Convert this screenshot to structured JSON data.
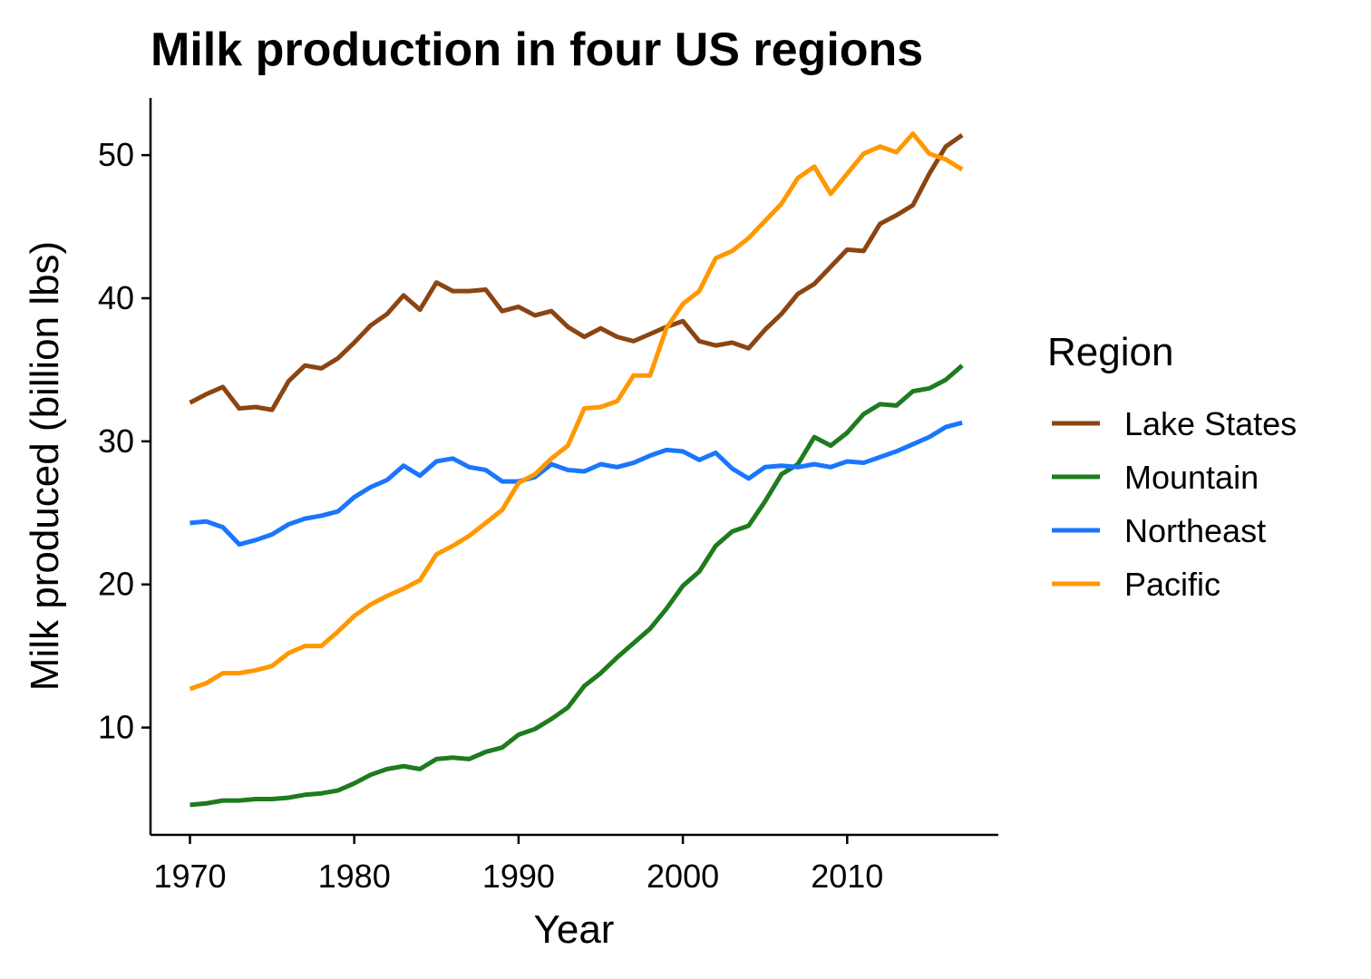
{
  "chart_data": {
    "type": "line",
    "title": "Milk production in four US regions",
    "xlabel": "Year",
    "ylabel": "Milk produced (billion lbs)",
    "xlim": [
      1967.6,
      2019.2
    ],
    "ylim": [
      2.5,
      54.0
    ],
    "x_ticks": [
      1970,
      1980,
      1990,
      2000,
      2010
    ],
    "y_ticks": [
      10,
      20,
      30,
      40,
      50
    ],
    "grid": false,
    "legend": {
      "title": "Region",
      "position": "right"
    },
    "x": [
      1970,
      1971,
      1972,
      1973,
      1974,
      1975,
      1976,
      1977,
      1978,
      1979,
      1980,
      1981,
      1982,
      1983,
      1984,
      1985,
      1986,
      1987,
      1988,
      1989,
      1990,
      1991,
      1992,
      1993,
      1994,
      1995,
      1996,
      1997,
      1998,
      1999,
      2000,
      2001,
      2002,
      2003,
      2004,
      2005,
      2006,
      2007,
      2008,
      2009,
      2010,
      2011,
      2012,
      2013,
      2014,
      2015,
      2016,
      2017
    ],
    "series": [
      {
        "name": "Lake States",
        "color": "#8B4513",
        "values": [
          32.7,
          33.3,
          33.8,
          32.3,
          32.4,
          32.2,
          34.2,
          35.3,
          35.1,
          35.8,
          36.9,
          38.1,
          38.9,
          40.2,
          39.2,
          41.1,
          40.5,
          40.5,
          40.6,
          39.1,
          39.4,
          38.8,
          39.1,
          38.0,
          37.3,
          37.9,
          37.3,
          37.0,
          37.5,
          38.0,
          38.4,
          37.0,
          36.7,
          36.9,
          36.5,
          37.8,
          38.9,
          40.3,
          41.0,
          42.2,
          43.4,
          43.3,
          45.2,
          45.8,
          46.5,
          48.7,
          50.6,
          51.4
        ]
      },
      {
        "name": "Mountain",
        "color": "#1E7B1E",
        "values": [
          4.6,
          4.7,
          4.9,
          4.9,
          5.0,
          5.0,
          5.1,
          5.3,
          5.4,
          5.6,
          6.1,
          6.7,
          7.1,
          7.3,
          7.1,
          7.8,
          7.9,
          7.8,
          8.3,
          8.6,
          9.5,
          9.9,
          10.6,
          11.4,
          12.9,
          13.8,
          14.9,
          15.9,
          16.9,
          18.3,
          19.9,
          20.9,
          22.7,
          23.7,
          24.1,
          25.8,
          27.7,
          28.4,
          30.3,
          29.7,
          30.6,
          31.9,
          32.6,
          32.5,
          33.5,
          33.7,
          34.3,
          35.3
        ]
      },
      {
        "name": "Northeast",
        "color": "#1A75FF",
        "values": [
          24.3,
          24.4,
          24.0,
          22.8,
          23.1,
          23.5,
          24.2,
          24.6,
          24.8,
          25.1,
          26.1,
          26.8,
          27.3,
          28.3,
          27.6,
          28.6,
          28.8,
          28.2,
          28.0,
          27.2,
          27.2,
          27.5,
          28.4,
          28.0,
          27.9,
          28.4,
          28.2,
          28.5,
          29.0,
          29.4,
          29.3,
          28.7,
          29.2,
          28.1,
          27.4,
          28.2,
          28.3,
          28.2,
          28.4,
          28.2,
          28.6,
          28.5,
          28.9,
          29.3,
          29.8,
          30.3,
          31.0,
          31.3
        ]
      },
      {
        "name": "Pacific",
        "color": "#FF9800",
        "values": [
          12.7,
          13.1,
          13.8,
          13.8,
          14.0,
          14.3,
          15.2,
          15.7,
          15.7,
          16.7,
          17.8,
          18.6,
          19.2,
          19.7,
          20.3,
          22.1,
          22.7,
          23.4,
          24.3,
          25.2,
          27.1,
          27.7,
          28.8,
          29.7,
          32.3,
          32.4,
          32.8,
          34.6,
          34.6,
          37.9,
          39.6,
          40.5,
          42.8,
          43.3,
          44.2,
          45.4,
          46.6,
          48.4,
          49.2,
          47.3,
          48.7,
          50.1,
          50.6,
          50.2,
          51.5,
          50.1,
          49.7,
          49.0
        ]
      }
    ]
  }
}
